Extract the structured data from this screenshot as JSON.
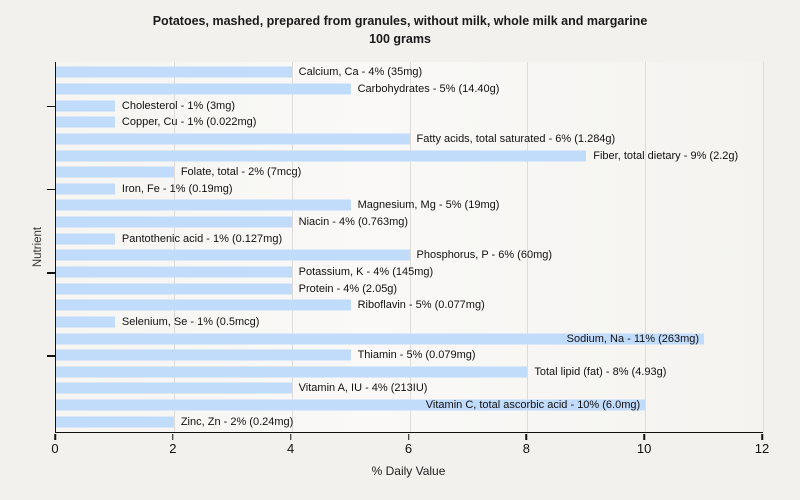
{
  "title": "Potatoes, mashed, prepared from granules, without milk, whole milk and margarine",
  "subtitle": "100 grams",
  "colors": {
    "bar": "#c1dbfb",
    "background": "#f2f1ee",
    "gridline": "#dddcd8",
    "axis": "#111111"
  },
  "chart_data": {
    "type": "bar",
    "orientation": "horizontal",
    "title": "Potatoes, mashed, prepared from granules, without milk, whole milk and margarine",
    "subtitle": "100 grams",
    "xlabel": "% Daily Value",
    "ylabel": "Nutrient",
    "xlim": [
      0,
      12
    ],
    "x_ticks": [
      0,
      2,
      4,
      6,
      8,
      10,
      12
    ],
    "grid_values": [
      2,
      4,
      6,
      8,
      10,
      12
    ],
    "grid": true,
    "legend": false,
    "y_tick_rows": [
      2,
      7,
      12,
      17
    ],
    "nutrients": [
      {
        "label": "Calcium, Ca - 4% (35mg)",
        "percent": 4
      },
      {
        "label": "Carbohydrates - 5% (14.40g)",
        "percent": 5
      },
      {
        "label": "Cholesterol - 1% (3mg)",
        "percent": 1
      },
      {
        "label": "Copper, Cu - 1% (0.022mg)",
        "percent": 1
      },
      {
        "label": "Fatty acids, total saturated - 6% (1.284g)",
        "percent": 6
      },
      {
        "label": "Fiber, total dietary - 9% (2.2g)",
        "percent": 9
      },
      {
        "label": "Folate, total - 2% (7mcg)",
        "percent": 2
      },
      {
        "label": "Iron, Fe - 1% (0.19mg)",
        "percent": 1
      },
      {
        "label": "Magnesium, Mg - 5% (19mg)",
        "percent": 5
      },
      {
        "label": "Niacin - 4% (0.763mg)",
        "percent": 4
      },
      {
        "label": "Pantothenic acid - 1% (0.127mg)",
        "percent": 1
      },
      {
        "label": "Phosphorus, P - 6% (60mg)",
        "percent": 6
      },
      {
        "label": "Potassium, K - 4% (145mg)",
        "percent": 4
      },
      {
        "label": "Protein - 4% (2.05g)",
        "percent": 4
      },
      {
        "label": "Riboflavin - 5% (0.077mg)",
        "percent": 5
      },
      {
        "label": "Selenium, Se - 1% (0.5mcg)",
        "percent": 1
      },
      {
        "label": "Sodium, Na - 11% (263mg)",
        "percent": 11
      },
      {
        "label": "Thiamin - 5% (0.079mg)",
        "percent": 5
      },
      {
        "label": "Total lipid (fat) - 8% (4.93g)",
        "percent": 8
      },
      {
        "label": "Vitamin A, IU - 4% (213IU)",
        "percent": 4
      },
      {
        "label": "Vitamin C, total ascorbic acid - 10% (6.0mg)",
        "percent": 10
      },
      {
        "label": "Zinc, Zn - 2% (0.24mg)",
        "percent": 2
      }
    ]
  }
}
